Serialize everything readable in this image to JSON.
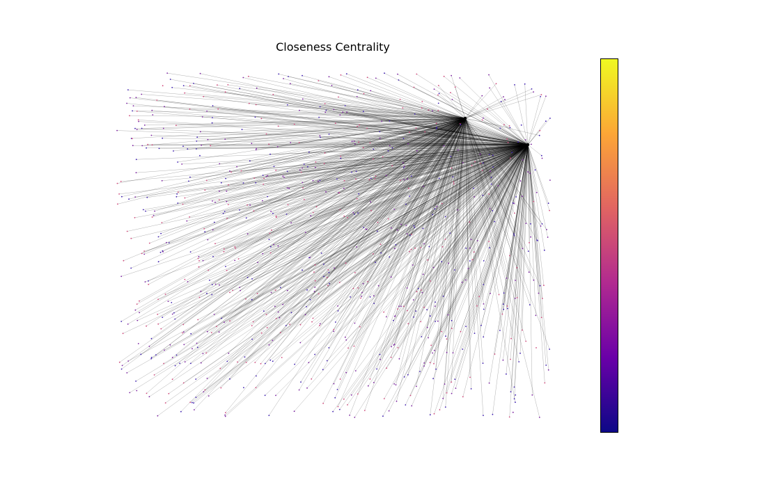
{
  "chart_data": {
    "type": "network",
    "title": "Closeness Centrality",
    "colormap": "plasma",
    "colormap_stops": [
      "#0d0887",
      "#6a00a8",
      "#b12a90",
      "#e16462",
      "#fca636",
      "#f0f921"
    ],
    "hubs": [
      {
        "id": "hub-a",
        "color": "#000000"
      },
      {
        "id": "hub-b",
        "color": "#000000"
      }
    ],
    "node_colors": [
      "#3b1bb0",
      "#d0487a",
      "#7a1fa0"
    ],
    "edge_color": "#000000",
    "colorbar": true,
    "axes": false
  }
}
